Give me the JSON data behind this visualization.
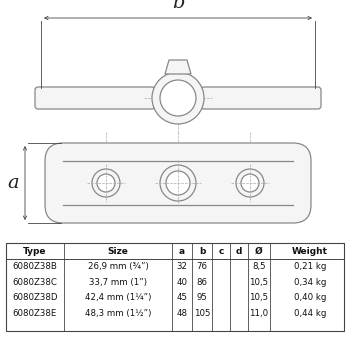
{
  "bg_color": "#ffffff",
  "lc": "#888888",
  "dc": "#444444",
  "dash_c": "#aaaaaa",
  "table_headers": [
    "Type",
    "Size",
    "a",
    "b",
    "c",
    "d",
    "Ø",
    "Weight"
  ],
  "table_rows": [
    [
      "6080Z38B",
      "26,9 mm (¾”)",
      "32",
      "76",
      "",
      "",
      "8,5",
      "0,21 kg"
    ],
    [
      "6080Z38C",
      "33,7 mm (1”)",
      "40",
      "86",
      "",
      "",
      "10,5",
      "0,34 kg"
    ],
    [
      "6080Z38D",
      "42,4 mm (1¼”)",
      "45",
      "95",
      "",
      "",
      "10,5",
      "0,40 kg"
    ],
    [
      "6080Z38E",
      "48,3 mm (1½”)",
      "48",
      "105",
      "",
      "",
      "11,0",
      "0,44 kg"
    ]
  ],
  "lw_main": 0.9,
  "lw_dim": 0.6,
  "lw_dash": 0.5
}
